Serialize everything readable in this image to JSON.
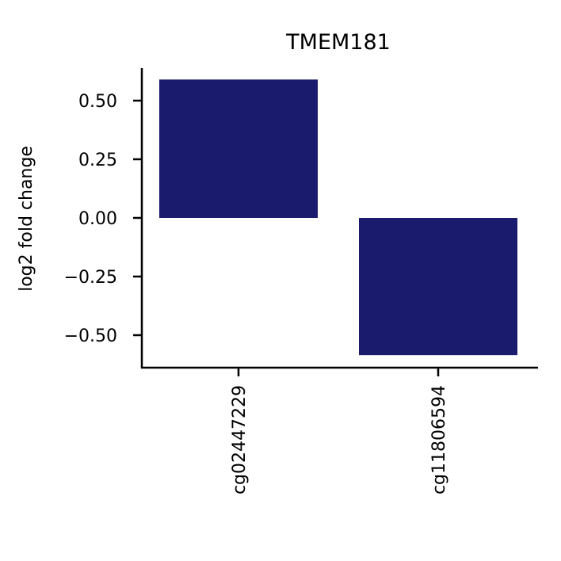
{
  "chart_data": {
    "type": "bar",
    "title": "TMEM181",
    "xlabel": "",
    "ylabel": "log2 fold change",
    "categories": [
      "cg02447229",
      "cg11806594"
    ],
    "values": [
      0.59,
      -0.585
    ],
    "ylim": [
      -0.65,
      0.65
    ],
    "yticks": [
      0.5,
      0.25,
      0.0,
      -0.25,
      -0.5
    ],
    "ytick_labels": [
      "0.50",
      "0.25",
      "0.00",
      "−0.25",
      "−0.50"
    ],
    "bar_color": "#1b1b6e",
    "grid": false,
    "legend": "none"
  }
}
